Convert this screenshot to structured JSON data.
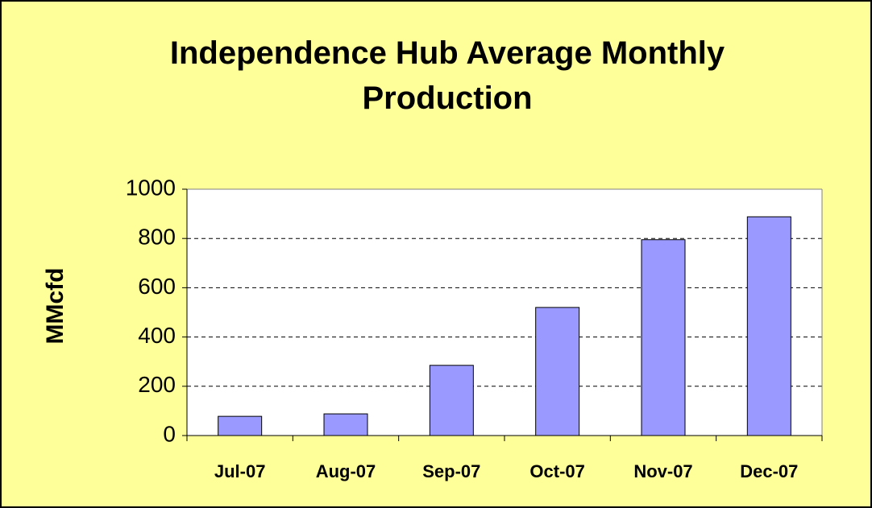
{
  "chart_data": {
    "type": "bar",
    "title": "Independence Hub Average Monthly Production",
    "y_label": "MMcfd",
    "categories": [
      "Jul-07",
      "Aug-07",
      "Sep-07",
      "Oct-07",
      "Nov-07",
      "Dec-07"
    ],
    "values": [
      78,
      88,
      285,
      520,
      795,
      888
    ],
    "color": "#9999ff",
    "ylim": [
      0,
      1000
    ],
    "yticks": [
      0,
      200,
      400,
      600,
      800,
      1000
    ],
    "grid": true
  }
}
